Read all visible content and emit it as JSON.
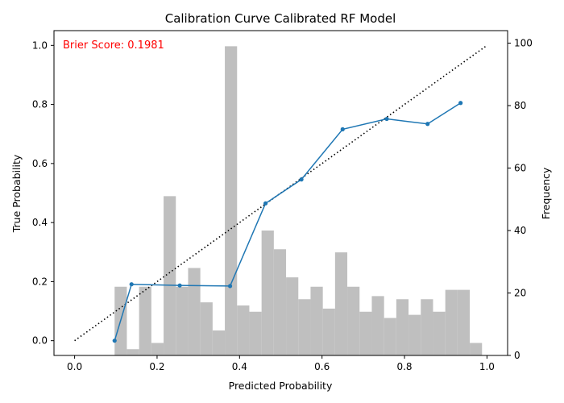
{
  "chart_data": {
    "type": "line",
    "title": "Calibration Curve Calibrated RF Model",
    "xlabel": "Predicted Probability",
    "ylabel": "True Probability",
    "y2label": "Frequency",
    "xlim": [
      -0.05,
      1.05
    ],
    "ylim": [
      -0.05,
      1.05
    ],
    "y2lim": [
      0,
      104
    ],
    "x_ticks": [
      "0.0",
      "0.2",
      "0.4",
      "0.6",
      "0.8",
      "1.0"
    ],
    "y_ticks": [
      "0.0",
      "0.2",
      "0.4",
      "0.6",
      "0.8",
      "1.0"
    ],
    "y2_ticks": [
      "0",
      "20",
      "40",
      "60",
      "80",
      "100"
    ],
    "annotation": "Brier Score: 0.1981",
    "annotation_color": "#ff0000",
    "line_color": "#1f77b4",
    "hist_color": "#bfbfbf",
    "calibration": {
      "x": [
        0.097,
        0.138,
        0.255,
        0.377,
        0.463,
        0.55,
        0.65,
        0.757,
        0.856,
        0.936
      ],
      "y": [
        0.0,
        0.191,
        0.187,
        0.185,
        0.465,
        0.546,
        0.716,
        0.751,
        0.734,
        0.805
      ]
    },
    "reference": {
      "x": [
        0,
        1
      ],
      "y": [
        0,
        1
      ]
    },
    "histogram": {
      "bin_width": 0.0297,
      "bin_starts": [
        0.097,
        0.1267,
        0.1564,
        0.1861,
        0.2158,
        0.2455,
        0.2752,
        0.3049,
        0.3346,
        0.3643,
        0.394,
        0.4237,
        0.4534,
        0.4831,
        0.5128,
        0.5425,
        0.5722,
        0.6019,
        0.6316,
        0.6613,
        0.691,
        0.7207,
        0.7504,
        0.7801,
        0.8098,
        0.8395,
        0.8692,
        0.8989,
        0.9286,
        0.9583
      ],
      "counts": [
        22,
        2,
        22,
        4,
        51,
        22,
        28,
        17,
        8,
        99,
        16,
        14,
        40,
        34,
        25,
        18,
        22,
        15,
        33,
        22,
        14,
        19,
        12,
        18,
        13,
        18,
        14,
        21,
        21,
        4
      ]
    }
  }
}
